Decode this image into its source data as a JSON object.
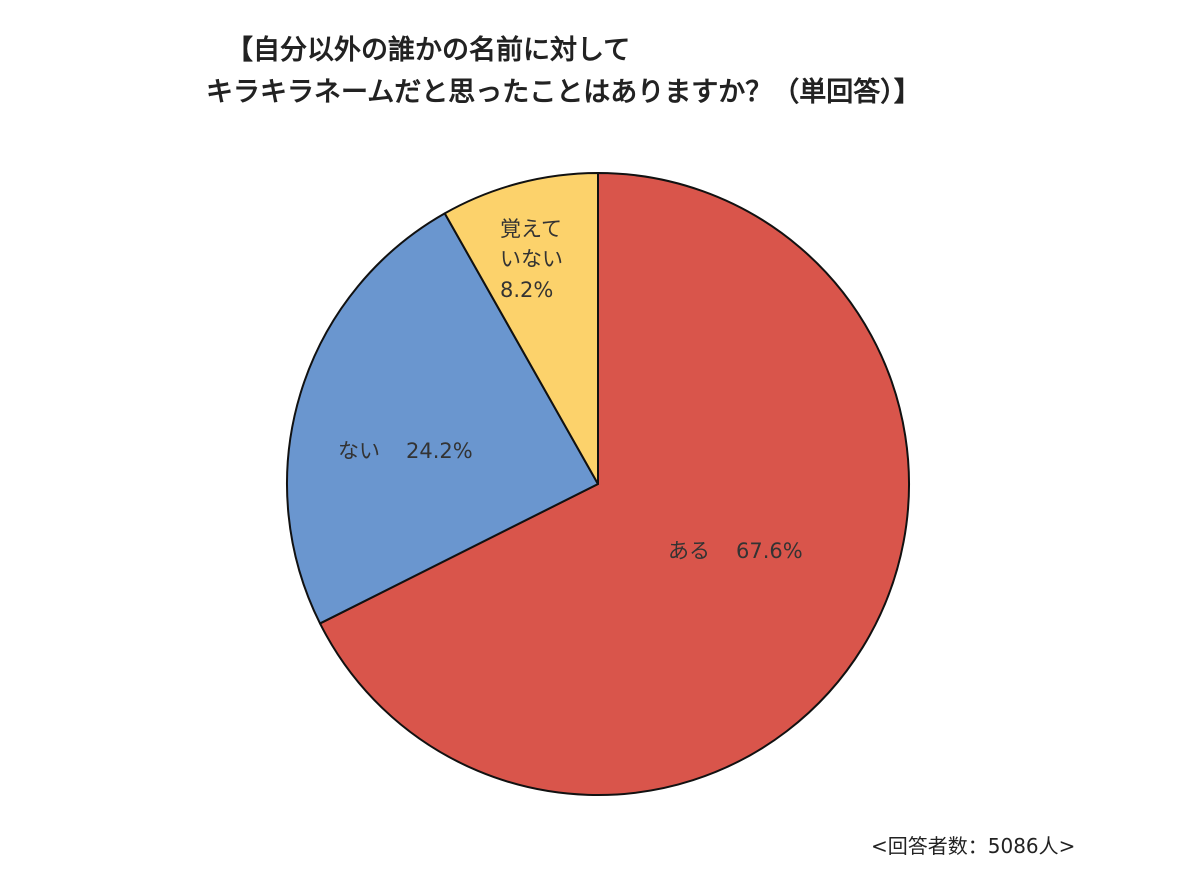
{
  "chart_data": {
    "type": "pie",
    "title_lines": [
      "【自分以外の誰かの名前に対して",
      "キラキラネームだと思ったことはありますか？（単回答）】"
    ],
    "slices": [
      {
        "label": "ある",
        "value": 67.6,
        "value_label": "67.6%",
        "color": "#d9554b"
      },
      {
        "label": "ない",
        "value": 24.2,
        "value_label": "24.2%",
        "color": "#6a96cf"
      },
      {
        "label_lines": [
          "覚えて",
          "いない"
        ],
        "value": 8.2,
        "value_label": "8.2%",
        "color": "#fcd26b"
      }
    ],
    "start": "12 o'clock",
    "direction": "clockwise",
    "legend": "none",
    "footnote": "<回答者数：5086人>"
  }
}
